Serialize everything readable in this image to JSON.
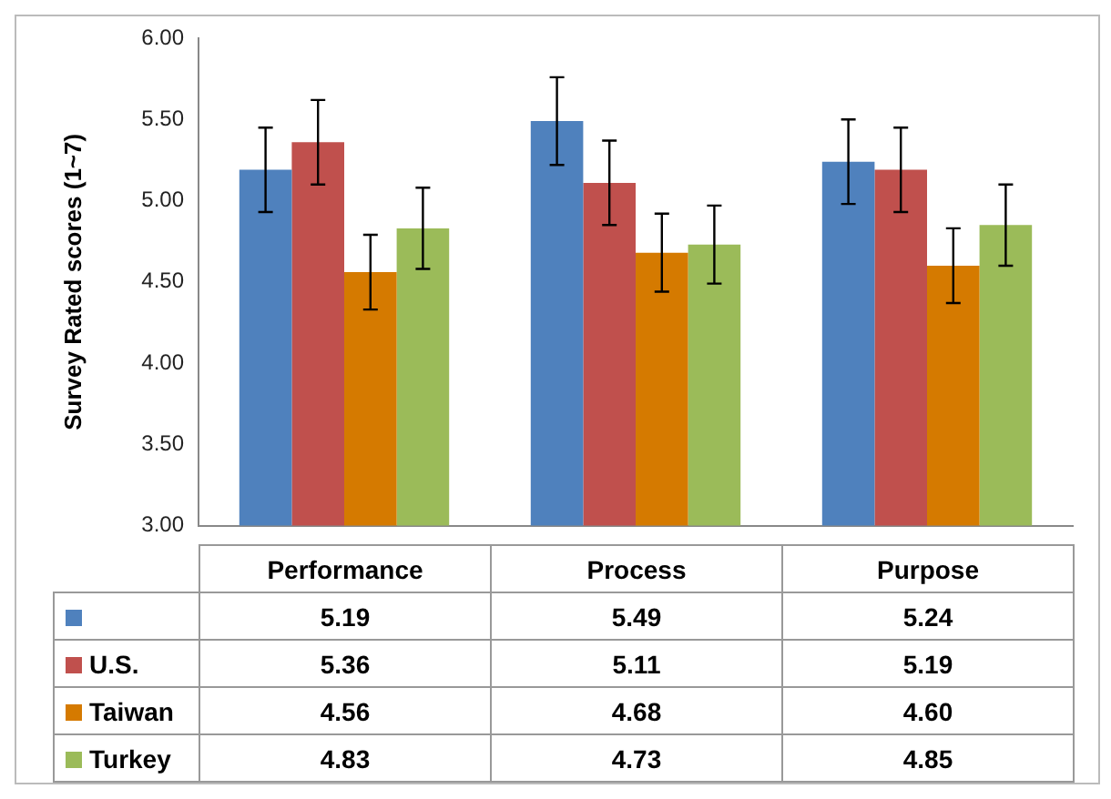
{
  "chart_data": {
    "type": "bar",
    "ylabel": "Survey Rated scores (1~7)",
    "categories": [
      "Performance",
      "Process",
      "Purpose"
    ],
    "series": [
      {
        "color": "#4f81bd",
        "values": [
          5.19,
          5.49,
          5.24
        ],
        "value_labels": [
          "5.19",
          "5.49",
          "5.24"
        ],
        "errors": [
          0.26,
          0.27,
          0.26
        ]
      },
      {
        "name": "U.S.",
        "color": "#c0504d",
        "values": [
          5.36,
          5.11,
          5.19
        ],
        "value_labels": [
          "5.36",
          "5.11",
          "5.19"
        ],
        "errors": [
          0.26,
          0.26,
          0.26
        ]
      },
      {
        "name": "Taiwan",
        "color": "#d57a00",
        "values": [
          4.56,
          4.68,
          4.6
        ],
        "value_labels": [
          "4.56",
          "4.68",
          "4.60"
        ],
        "errors": [
          0.23,
          0.24,
          0.23
        ]
      },
      {
        "name": "Turkey",
        "color": "#9bbb59",
        "values": [
          4.83,
          4.73,
          4.85
        ],
        "value_labels": [
          "4.83",
          "4.73",
          "4.85"
        ],
        "errors": [
          0.25,
          0.24,
          0.25
        ]
      }
    ],
    "ylim": [
      3,
      6
    ],
    "yticks": [
      {
        "value": 3,
        "label": "3.00"
      },
      {
        "value": 3.5,
        "label": "3.50"
      },
      {
        "value": 4,
        "label": "4.00"
      },
      {
        "value": 4.5,
        "label": "4.50"
      },
      {
        "value": 5,
        "label": "5.00"
      },
      {
        "value": 5.5,
        "label": "5.50"
      },
      {
        "value": 6,
        "label": "6.00"
      }
    ],
    "grid": false,
    "legend": "bottom"
  }
}
